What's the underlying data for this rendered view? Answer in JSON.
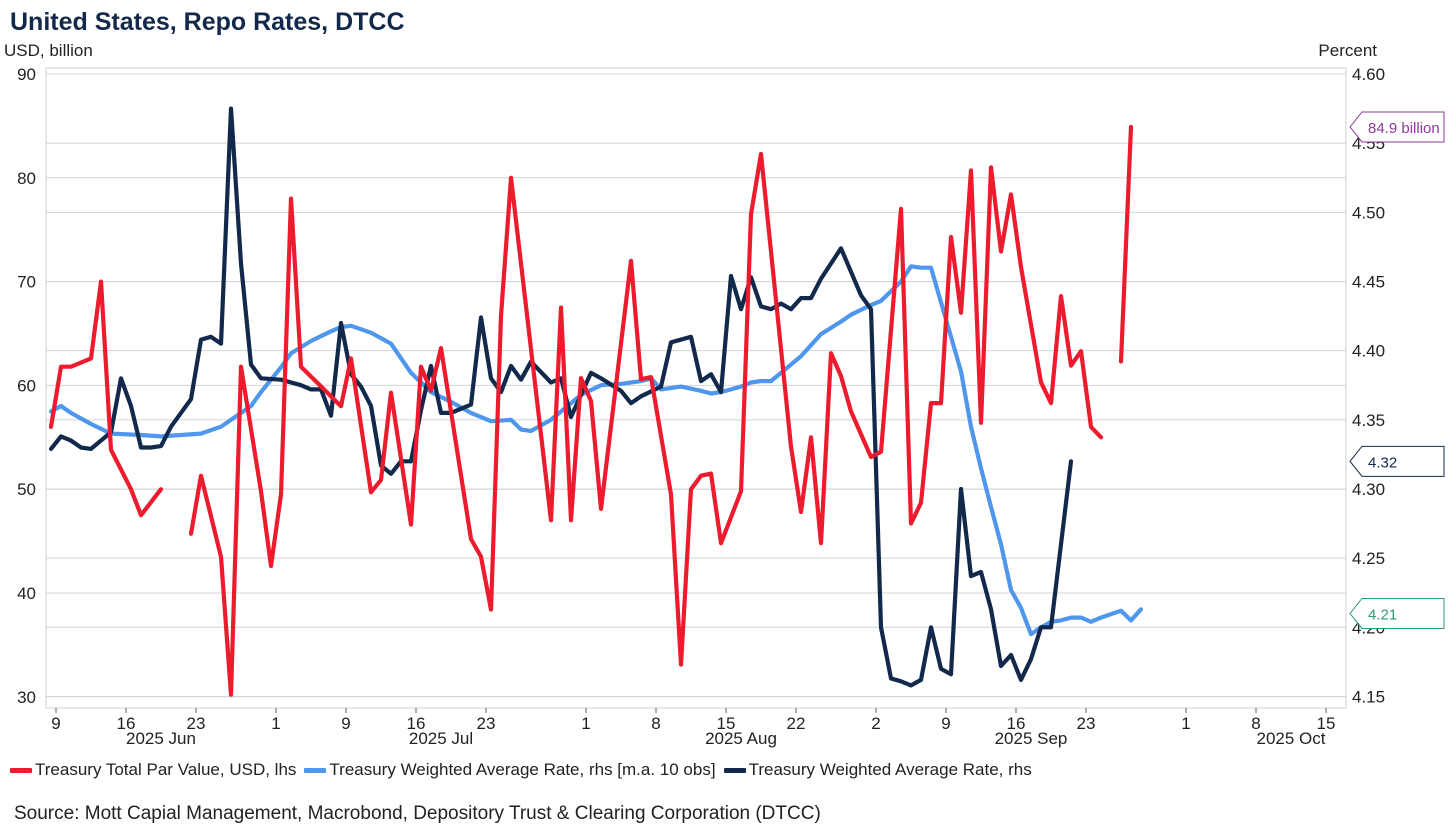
{
  "title": "United States, Repo Rates, DTCC",
  "left_unit": "USD, billion",
  "right_unit": "Percent",
  "source": "Source: Mott Capial Management, Macrobond, Depository Trust & Clearing Corporation (DTCC)",
  "colors": {
    "red": "#ec1b2e",
    "light_blue": "#4e97ec",
    "navy": "#13294b",
    "grid": "#d4d4d4"
  },
  "chart_data": {
    "type": "line",
    "title": "United States, Repo Rates, DTCC",
    "x_start": "2025-06-09",
    "x_end": "2025-10-15",
    "x_day_min": -1,
    "x_day_max": 129,
    "x_ticks": [
      {
        "day": 0,
        "label": "9"
      },
      {
        "day": 7,
        "label": "16"
      },
      {
        "day": 14,
        "label": "23"
      },
      {
        "day": 22,
        "label": "1"
      },
      {
        "day": 29,
        "label": "9"
      },
      {
        "day": 36,
        "label": "16"
      },
      {
        "day": 43,
        "label": "23"
      },
      {
        "day": 53,
        "label": "1"
      },
      {
        "day": 60,
        "label": "8"
      },
      {
        "day": 67,
        "label": "15"
      },
      {
        "day": 74,
        "label": "22"
      },
      {
        "day": 82,
        "label": "2"
      },
      {
        "day": 89,
        "label": "9"
      },
      {
        "day": 96,
        "label": "16"
      },
      {
        "day": 103,
        "label": "23"
      },
      {
        "day": 113,
        "label": "1"
      },
      {
        "day": 120,
        "label": "8"
      },
      {
        "day": 127,
        "label": "15"
      }
    ],
    "month_labels": [
      {
        "day": 10.5,
        "label": "2025 Jun"
      },
      {
        "day": 38.5,
        "label": "2025 Jul"
      },
      {
        "day": 68.5,
        "label": "2025 Aug"
      },
      {
        "day": 97.5,
        "label": "2025 Sep"
      },
      {
        "day": 123.5,
        "label": "2025 Oct"
      }
    ],
    "y_left": {
      "label": "USD, billion",
      "min": 29.5,
      "max": 90,
      "ticks": [
        30,
        40,
        50,
        60,
        70,
        80,
        90
      ]
    },
    "y_right": {
      "label": "Percent",
      "min": 4.146,
      "max": 4.6,
      "ticks": [
        "4.15",
        "4.20",
        "4.25",
        "4.30",
        "4.35",
        "4.40",
        "4.45",
        "4.50",
        "4.55",
        "4.60"
      ]
    },
    "series": [
      {
        "name": "Treasury Total Par Value, USD, lhs",
        "axis": "left",
        "color": "#ec1b2e",
        "segments": [
          [
            [
              -0.5,
              56
            ],
            [
              0.5,
              61.8
            ],
            [
              1.5,
              61.8
            ],
            [
              3.5,
              62.6
            ],
            [
              4.5,
              70
            ],
            [
              5.5,
              53.8
            ],
            [
              7.5,
              50
            ],
            [
              8.5,
              47.5
            ],
            [
              10.5,
              50
            ]
          ],
          [
            [
              13.5,
              45.7
            ],
            [
              14.5,
              51.3
            ],
            [
              16.5,
              43.5
            ],
            [
              17.5,
              30.2
            ],
            [
              18.5,
              61.8
            ],
            [
              20.5,
              49.8
            ],
            [
              21.5,
              42.6
            ],
            [
              22.5,
              49.5
            ],
            [
              23.5,
              78
            ],
            [
              24.5,
              61.8
            ],
            [
              26.5,
              59.9
            ],
            [
              28.5,
              58
            ],
            [
              29.5,
              62.6
            ],
            [
              31.5,
              49.7
            ],
            [
              32.5,
              50.9
            ],
            [
              33.5,
              59.3
            ],
            [
              35.5,
              46.6
            ],
            [
              36.5,
              61.8
            ],
            [
              37.5,
              59.5
            ],
            [
              38.5,
              63.6
            ],
            [
              41.5,
              45.2
            ],
            [
              42.5,
              43.5
            ],
            [
              43.5,
              38.4
            ],
            [
              44.5,
              66.7
            ],
            [
              45.5,
              80
            ],
            [
              49.5,
              47
            ],
            [
              50.5,
              67.5
            ],
            [
              51.5,
              47
            ],
            [
              52.5,
              60.7
            ],
            [
              53.5,
              58.5
            ],
            [
              54.5,
              48.1
            ],
            [
              57.5,
              72
            ],
            [
              58.5,
              60.6
            ],
            [
              59.5,
              60.8
            ],
            [
              61.5,
              49.5
            ],
            [
              62.5,
              33.1
            ],
            [
              63.5,
              50
            ],
            [
              64.5,
              51.3
            ],
            [
              65.5,
              51.5
            ],
            [
              66.5,
              44.8
            ],
            [
              68.5,
              49.8
            ],
            [
              69.5,
              76.5
            ],
            [
              70.5,
              82.3
            ],
            [
              73.5,
              54.1
            ],
            [
              74.5,
              47.8
            ],
            [
              75.5,
              55
            ],
            [
              76.5,
              44.8
            ],
            [
              77.5,
              63.1
            ],
            [
              78.5,
              60.9
            ],
            [
              79.5,
              57.5
            ],
            [
              81.5,
              53.1
            ],
            [
              82.5,
              53.6
            ],
            [
              84.5,
              77
            ],
            [
              85.5,
              46.7
            ],
            [
              86.5,
              48.7
            ],
            [
              87.5,
              58.3
            ],
            [
              88.5,
              58.3
            ],
            [
              89.5,
              74.3
            ],
            [
              90.5,
              67
            ],
            [
              91.5,
              80.7
            ],
            [
              92.5,
              56.4
            ],
            [
              93.5,
              81
            ],
            [
              94.5,
              72.9
            ],
            [
              95.5,
              78.4
            ],
            [
              96.5,
              71.4
            ],
            [
              98.5,
              60.3
            ],
            [
              99.5,
              58.3
            ],
            [
              100.5,
              68.6
            ],
            [
              101.5,
              61.9
            ],
            [
              102.5,
              63.3
            ],
            [
              103.5,
              56
            ],
            [
              104.5,
              55
            ]
          ],
          [
            [
              106.5,
              62.3
            ],
            [
              107.5,
              84.9
            ]
          ]
        ]
      },
      {
        "name": "Treasury Weighted Average Rate, rhs [m.a. 10 obs]",
        "axis": "right",
        "color": "#4e97ec",
        "points": [
          [
            -0.5,
            4.356
          ],
          [
            0.5,
            4.36
          ],
          [
            1.5,
            4.355
          ],
          [
            3.5,
            4.347
          ],
          [
            5.5,
            4.34
          ],
          [
            8.5,
            4.339
          ],
          [
            10.5,
            4.338
          ],
          [
            12.5,
            4.339
          ],
          [
            14.5,
            4.34
          ],
          [
            16.5,
            4.345
          ],
          [
            19.5,
            4.36
          ],
          [
            20.5,
            4.37
          ],
          [
            22.5,
            4.388
          ],
          [
            23.5,
            4.398
          ],
          [
            25.5,
            4.407
          ],
          [
            27.5,
            4.414
          ],
          [
            28.5,
            4.417
          ],
          [
            29.5,
            4.418
          ],
          [
            31.5,
            4.413
          ],
          [
            33.5,
            4.405
          ],
          [
            35.5,
            4.384
          ],
          [
            37.5,
            4.37
          ],
          [
            39.5,
            4.363
          ],
          [
            41.5,
            4.355
          ],
          [
            43.5,
            4.349
          ],
          [
            45.5,
            4.35
          ],
          [
            46.5,
            4.343
          ],
          [
            47.5,
            4.342
          ],
          [
            49.5,
            4.35
          ],
          [
            50.5,
            4.356
          ],
          [
            52.5,
            4.368
          ],
          [
            54.5,
            4.375
          ],
          [
            56.5,
            4.376
          ],
          [
            58.5,
            4.378
          ],
          [
            59.5,
            4.38
          ],
          [
            60.5,
            4.372
          ],
          [
            62.5,
            4.374
          ],
          [
            64.5,
            4.371
          ],
          [
            65.5,
            4.369
          ],
          [
            66.5,
            4.37
          ],
          [
            68.5,
            4.374
          ],
          [
            69.5,
            4.377
          ],
          [
            70.5,
            4.378
          ],
          [
            71.5,
            4.378
          ],
          [
            73.5,
            4.39
          ],
          [
            74.5,
            4.396
          ],
          [
            76.5,
            4.412
          ],
          [
            78.5,
            4.421
          ],
          [
            79.5,
            4.426
          ],
          [
            81.5,
            4.433
          ],
          [
            82.5,
            4.436
          ],
          [
            84.5,
            4.45
          ],
          [
            85.5,
            4.461
          ],
          [
            86.5,
            4.46
          ],
          [
            87.5,
            4.46
          ],
          [
            89.5,
            4.41
          ],
          [
            90.5,
            4.385
          ],
          [
            91.5,
            4.345
          ],
          [
            92.5,
            4.315
          ],
          [
            93.5,
            4.287
          ],
          [
            94.5,
            4.26
          ],
          [
            95.5,
            4.227
          ],
          [
            96.5,
            4.214
          ],
          [
            97.5,
            4.195
          ],
          [
            98.5,
            4.2
          ],
          [
            99.5,
            4.204
          ],
          [
            100.5,
            4.205
          ],
          [
            101.5,
            4.207
          ],
          [
            102.5,
            4.207
          ],
          [
            103.5,
            4.204
          ],
          [
            104.5,
            4.207
          ],
          [
            106.5,
            4.212
          ],
          [
            107.5,
            4.205
          ],
          [
            108.5,
            4.213
          ]
        ]
      },
      {
        "name": "Treasury Weighted Average Rate, rhs",
        "axis": "right",
        "color": "#13294b",
        "points": [
          [
            -0.5,
            4.329
          ],
          [
            0.5,
            4.338
          ],
          [
            1.5,
            4.335
          ],
          [
            2.5,
            4.33
          ],
          [
            3.5,
            4.329
          ],
          [
            5.5,
            4.341
          ],
          [
            6.5,
            4.38
          ],
          [
            7.5,
            4.36
          ],
          [
            8.5,
            4.33
          ],
          [
            9.5,
            4.33
          ],
          [
            10.5,
            4.331
          ],
          [
            11.5,
            4.345
          ],
          [
            13.5,
            4.365
          ],
          [
            14.5,
            4.408
          ],
          [
            15.5,
            4.41
          ],
          [
            16.5,
            4.405
          ],
          [
            17.5,
            4.575
          ],
          [
            18.5,
            4.463
          ],
          [
            19.5,
            4.39
          ],
          [
            20.5,
            4.38
          ],
          [
            22.5,
            4.379
          ],
          [
            24.5,
            4.375
          ],
          [
            25.5,
            4.372
          ],
          [
            26.5,
            4.372
          ],
          [
            27.5,
            4.353
          ],
          [
            28.5,
            4.42
          ],
          [
            29.5,
            4.383
          ],
          [
            30.5,
            4.374
          ],
          [
            31.5,
            4.36
          ],
          [
            32.5,
            4.317
          ],
          [
            33.5,
            4.311
          ],
          [
            34.5,
            4.32
          ],
          [
            35.5,
            4.32
          ],
          [
            36.5,
            4.357
          ],
          [
            37.5,
            4.389
          ],
          [
            38.5,
            4.355
          ],
          [
            39.5,
            4.355
          ],
          [
            41.5,
            4.361
          ],
          [
            42.5,
            4.424
          ],
          [
            43.5,
            4.38
          ],
          [
            44.5,
            4.37
          ],
          [
            45.5,
            4.389
          ],
          [
            46.5,
            4.379
          ],
          [
            47.5,
            4.392
          ],
          [
            49.5,
            4.377
          ],
          [
            50.5,
            4.38
          ],
          [
            51.5,
            4.352
          ],
          [
            53.5,
            4.384
          ],
          [
            54.5,
            4.38
          ],
          [
            56.5,
            4.371
          ],
          [
            57.5,
            4.362
          ],
          [
            58.5,
            4.367
          ],
          [
            60.5,
            4.374
          ],
          [
            61.5,
            4.406
          ],
          [
            63.5,
            4.41
          ],
          [
            64.5,
            4.378
          ],
          [
            65.5,
            4.383
          ],
          [
            66.5,
            4.37
          ],
          [
            67.5,
            4.454
          ],
          [
            68.5,
            4.43
          ],
          [
            69.5,
            4.453
          ],
          [
            70.5,
            4.432
          ],
          [
            71.5,
            4.43
          ],
          [
            72.5,
            4.434
          ],
          [
            73.5,
            4.43
          ],
          [
            74.5,
            4.438
          ],
          [
            75.5,
            4.438
          ],
          [
            76.5,
            4.452
          ],
          [
            78.5,
            4.474
          ],
          [
            80.5,
            4.44
          ],
          [
            81.5,
            4.43
          ],
          [
            82.5,
            4.2
          ],
          [
            83.5,
            4.163
          ],
          [
            84.5,
            4.161
          ],
          [
            85.5,
            4.158
          ],
          [
            86.5,
            4.162
          ],
          [
            87.5,
            4.2
          ],
          [
            88.5,
            4.17
          ],
          [
            89.5,
            4.166
          ],
          [
            90.5,
            4.3
          ],
          [
            91.5,
            4.237
          ],
          [
            92.5,
            4.24
          ],
          [
            93.5,
            4.213
          ],
          [
            94.5,
            4.172
          ],
          [
            95.5,
            4.18
          ],
          [
            96.5,
            4.162
          ],
          [
            97.5,
            4.177
          ],
          [
            98.5,
            4.2
          ],
          [
            99.5,
            4.2
          ],
          [
            100.5,
            4.26
          ],
          [
            101.5,
            4.32
          ]
        ]
      }
    ],
    "end_labels": [
      {
        "text": "84.9 billion",
        "value": 84.9,
        "axis": "left",
        "color": "#8b3a9e"
      },
      {
        "text": "4.32",
        "value": 4.32,
        "axis": "right",
        "color": "#13294b"
      },
      {
        "text": "4.21",
        "value": 4.21,
        "axis": "right",
        "color": "#2f9a7a"
      }
    ]
  }
}
